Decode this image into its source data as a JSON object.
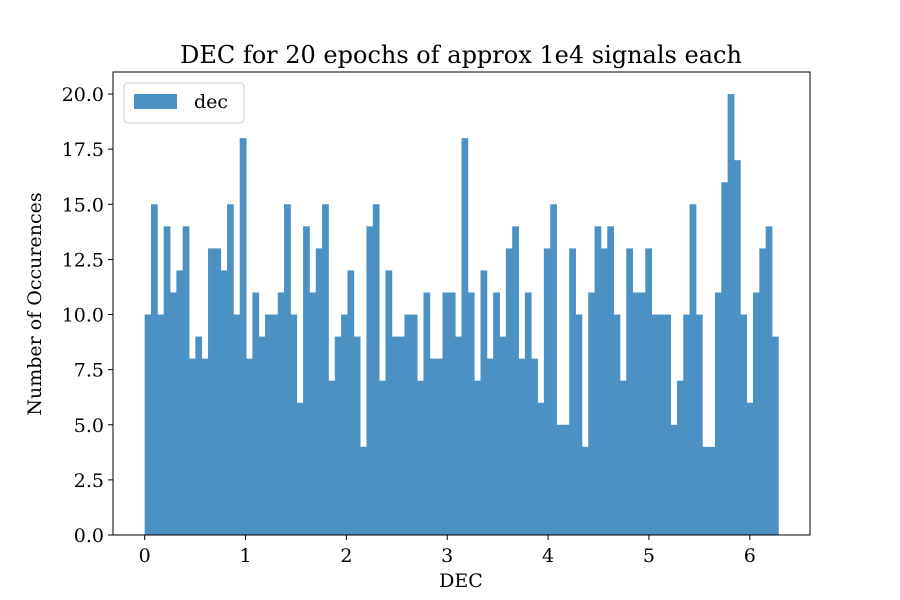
{
  "chart_data": {
    "type": "bar",
    "title": "DEC for 20 epochs of approx 1e4 signals each",
    "xlabel": "DEC",
    "ylabel": "Number of Occurences",
    "xlim": [
      -0.314,
      6.597
    ],
    "ylim": [
      0,
      21
    ],
    "bin_range": [
      0,
      6.283
    ],
    "x_ticks": [
      0,
      1,
      2,
      3,
      4,
      5,
      6
    ],
    "x_tick_labels": [
      "0",
      "1",
      "2",
      "3",
      "4",
      "5",
      "6"
    ],
    "y_ticks": [
      0,
      2.5,
      5,
      7.5,
      10,
      12.5,
      15,
      17.5,
      20
    ],
    "y_tick_labels": [
      "0.0",
      "2.5",
      "5.0",
      "7.5",
      "10.0",
      "12.5",
      "15.0",
      "17.5",
      "20.0"
    ],
    "grid": false,
    "legend": {
      "placement": "top-left",
      "entries": [
        "dec"
      ]
    },
    "series": [
      {
        "name": "dec",
        "color": "#4c91c3",
        "values": [
          10,
          15,
          10,
          14,
          11,
          12,
          14,
          8,
          9,
          8,
          13,
          13,
          12,
          15,
          10,
          18,
          8,
          11,
          9,
          10,
          10,
          11,
          15,
          10,
          6,
          14,
          11,
          13,
          15,
          7,
          9,
          10,
          12,
          9,
          4,
          14,
          15,
          7,
          12,
          9,
          9,
          10,
          10,
          7,
          11,
          8,
          8,
          11,
          11,
          9,
          18,
          11,
          7,
          12,
          8,
          11,
          9,
          13,
          14,
          8,
          11,
          8,
          6,
          13,
          15,
          5,
          5,
          13,
          10,
          4,
          11,
          14,
          13,
          14,
          10,
          7,
          13,
          11,
          11,
          13,
          10,
          10,
          10,
          5,
          7,
          10,
          15,
          10,
          4,
          4,
          11,
          16,
          20,
          17,
          10,
          6,
          11,
          13,
          14,
          9
        ]
      }
    ]
  }
}
